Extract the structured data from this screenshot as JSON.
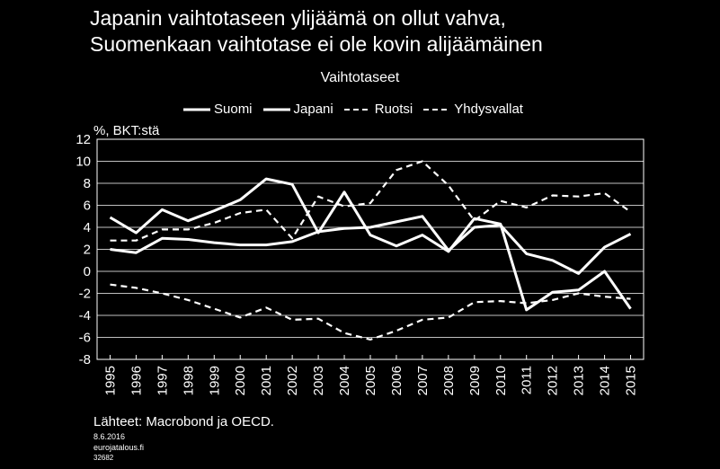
{
  "header": {
    "title_line1": "Japanin vaihtotaseen ylijäämä on ollut vahva,",
    "title_line2": "Suomenkaan vaihtotase ei ole kovin alijäämäinen"
  },
  "footer": {
    "source": "Lähteet: Macrobond ja OECD.",
    "date": "8.6.2016",
    "site": "eurojatalous.fi",
    "code": "32682"
  },
  "colors": {
    "background": "#000000",
    "foreground": "#ffffff"
  },
  "chart_data": {
    "type": "line",
    "title": "Vaihtotaseet",
    "ylabel": "%, BKT:stä",
    "xlabel": "",
    "ylim": [
      -8,
      12
    ],
    "yticks": [
      -8,
      -6,
      -4,
      -2,
      0,
      2,
      4,
      6,
      8,
      10,
      12
    ],
    "grid": true,
    "legend_position": "top",
    "x": [
      "1995",
      "1996",
      "1997",
      "1998",
      "1999",
      "2000",
      "2001",
      "2002",
      "2003",
      "2004",
      "2005",
      "2006",
      "2007",
      "2008",
      "2009",
      "2010",
      "2011",
      "2012",
      "2013",
      "2014",
      "2015"
    ],
    "series": [
      {
        "name": "Suomi",
        "style": "solid",
        "values": [
          4.9,
          3.5,
          5.6,
          4.6,
          5.5,
          6.5,
          8.4,
          7.9,
          3.5,
          7.2,
          3.3,
          2.3,
          3.3,
          1.8,
          4.8,
          4.3,
          -3.5,
          -1.9,
          -1.7,
          0.0,
          -3.4
        ]
      },
      {
        "name": "Japani",
        "style": "solid",
        "values": [
          2.0,
          1.7,
          3.0,
          2.9,
          2.6,
          2.4,
          2.4,
          2.7,
          3.6,
          3.9,
          4.0,
          4.5,
          5.0,
          1.9,
          4.0,
          4.2,
          1.6,
          1.0,
          -0.2,
          2.2,
          3.4
        ]
      },
      {
        "name": "Ruotsi",
        "style": "dashed",
        "values": [
          2.8,
          2.8,
          3.8,
          3.8,
          4.4,
          5.3,
          5.6,
          3.0,
          6.8,
          5.9,
          6.2,
          9.2,
          10.0,
          7.8,
          4.6,
          6.4,
          5.8,
          6.9,
          6.8,
          7.1,
          5.4
        ]
      },
      {
        "name": "Yhdysvallat",
        "style": "dashed",
        "values": [
          -1.2,
          -1.5,
          -2.0,
          -2.6,
          -3.4,
          -4.2,
          -3.3,
          -4.4,
          -4.3,
          -5.6,
          -6.2,
          -5.4,
          -4.4,
          -4.2,
          -2.8,
          -2.7,
          -2.9,
          -2.6,
          -2.0,
          -2.3,
          -2.5
        ]
      }
    ]
  }
}
